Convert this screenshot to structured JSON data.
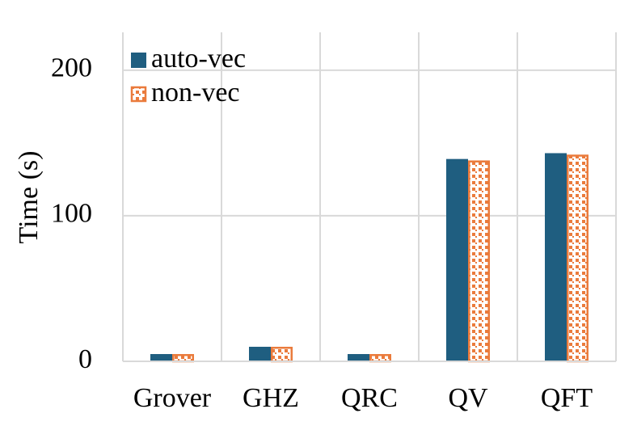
{
  "chart_data": {
    "type": "bar",
    "y_label": "Time (s)",
    "categories": [
      "Grover",
      "GHZ",
      "QRC",
      "QV",
      "QFT"
    ],
    "series": [
      {
        "name": "auto-vec",
        "color": "#1f5e80",
        "hatch": false,
        "values": [
          5,
          10,
          5,
          139,
          143
        ]
      },
      {
        "name": "non-vec",
        "color": "#ea7b3c",
        "hatch": true,
        "values": [
          5,
          10,
          5,
          138,
          142
        ]
      }
    ],
    "ylim": [
      0,
      226
    ],
    "yticks": [
      0,
      100,
      200
    ],
    "grid": true,
    "legend": "top-left"
  }
}
